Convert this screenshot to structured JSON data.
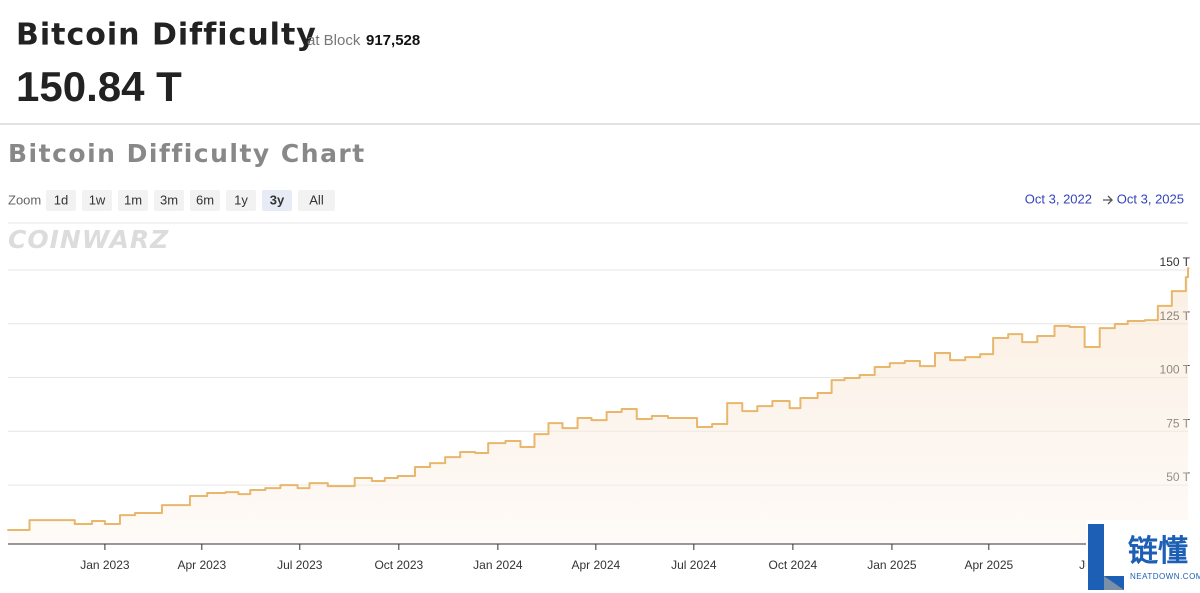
{
  "header": {
    "title": "Bitcoin Difficulty",
    "block_prefix": "at Block",
    "block": "917,528",
    "current_value": "150.84 T"
  },
  "chart_title": "Bitcoin Difficulty Chart",
  "zoom": {
    "label": "Zoom",
    "buttons": [
      "1d",
      "1w",
      "1m",
      "3m",
      "6m",
      "1y",
      "3y",
      "All"
    ],
    "selected": "3y"
  },
  "range": {
    "from": "Oct 3, 2022",
    "to": "Oct 3, 2025"
  },
  "brand_watermark": "COINWARZ",
  "corner_badge": {
    "title": "链懂",
    "subtitle": "NEATDOWN.COM"
  },
  "chart_data": {
    "type": "step-line",
    "color": "#e9b76c",
    "grid": true,
    "x": [
      "2022-10-03",
      "2022-10-23",
      "2022-12-04",
      "2022-12-20",
      "2023-01-01",
      "2023-01-15",
      "2023-01-29",
      "2023-02-23",
      "2023-03-21",
      "2023-04-06",
      "2023-04-23",
      "2023-05-05",
      "2023-05-16",
      "2023-05-30",
      "2023-06-13",
      "2023-06-29",
      "2023-07-10",
      "2023-07-27",
      "2023-08-21",
      "2023-09-06",
      "2023-09-18",
      "2023-09-30",
      "2023-10-16",
      "2023-10-30",
      "2023-11-13",
      "2023-11-27",
      "2023-12-11",
      "2023-12-23",
      "2024-01-08",
      "2024-01-22",
      "2024-02-04",
      "2024-02-17",
      "2024-03-01",
      "2024-03-15",
      "2024-03-28",
      "2024-04-11",
      "2024-04-25",
      "2024-05-09",
      "2024-05-23",
      "2024-06-07",
      "2024-07-04",
      "2024-07-18",
      "2024-08-01",
      "2024-08-15",
      "2024-08-29",
      "2024-09-12",
      "2024-09-28",
      "2024-10-08",
      "2024-10-24",
      "2024-11-06",
      "2024-11-18",
      "2024-12-02",
      "2024-12-16",
      "2024-12-30",
      "2025-01-13",
      "2025-01-27",
      "2025-02-10",
      "2025-02-24",
      "2025-03-10",
      "2025-03-24",
      "2025-04-05",
      "2025-04-19",
      "2025-05-02",
      "2025-05-16",
      "2025-06-01",
      "2025-06-15",
      "2025-06-29",
      "2025-07-13",
      "2025-07-27",
      "2025-08-08",
      "2025-08-24",
      "2025-09-05",
      "2025-09-18",
      "2025-10-01",
      "2025-10-03"
    ],
    "values": [
      29.1,
      33.7,
      31.9,
      33.3,
      31.9,
      36.0,
      37.0,
      40.7,
      44.9,
      46.3,
      46.7,
      45.8,
      47.7,
      48.6,
      50.0,
      48.6,
      50.9,
      49.5,
      53.3,
      51.9,
      53.3,
      54.2,
      58.4,
      60.2,
      63.0,
      65.4,
      64.9,
      69.5,
      70.5,
      67.7,
      73.7,
      78.8,
      76.5,
      81.2,
      80.2,
      84.0,
      85.4,
      80.7,
      82.1,
      81.2,
      77.0,
      78.4,
      88.1,
      84.4,
      86.7,
      89.1,
      85.8,
      90.5,
      92.8,
      98.8,
      99.8,
      101.2,
      104.9,
      106.7,
      107.7,
      105.3,
      111.4,
      108.1,
      109.5,
      110.9,
      118.4,
      120.2,
      116.5,
      119.3,
      124.0,
      123.5,
      114.2,
      123.0,
      124.9,
      126.3,
      126.7,
      133.3,
      140.2,
      146.7,
      150.84
    ],
    "xlim": [
      "2022-10-03",
      "2025-10-03"
    ],
    "xticks": [
      {
        "value": "2023-01-01",
        "label": "Jan 2023"
      },
      {
        "value": "2023-04-01",
        "label": "Apr 2023"
      },
      {
        "value": "2023-07-01",
        "label": "Jul 2023"
      },
      {
        "value": "2023-10-01",
        "label": "Oct 2023"
      },
      {
        "value": "2024-01-01",
        "label": "Jan 2024"
      },
      {
        "value": "2024-04-01",
        "label": "Apr 2024"
      },
      {
        "value": "2024-07-01",
        "label": "Jul 2024"
      },
      {
        "value": "2024-10-01",
        "label": "Oct 2024"
      },
      {
        "value": "2025-01-01",
        "label": "Jan 2025"
      },
      {
        "value": "2025-04-01",
        "label": "Apr 2025"
      },
      {
        "value": "2025-07-01",
        "label": "Jul"
      }
    ],
    "ylim": [
      22.6,
      171.4
    ],
    "yticks": [
      {
        "value": 50,
        "label": "50 T"
      },
      {
        "value": 75,
        "label": "75 T"
      },
      {
        "value": 100,
        "label": "100 T"
      },
      {
        "value": 125,
        "label": "125 T"
      },
      {
        "value": 150,
        "label": "150 T"
      }
    ]
  }
}
